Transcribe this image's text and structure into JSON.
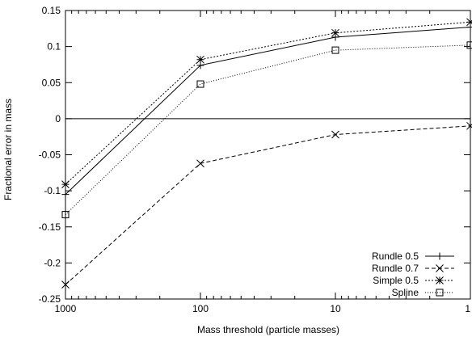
{
  "chart_data": {
    "type": "line",
    "xlabel": "Mass threshold (particle masses)",
    "ylabel": "Fractional error in mass",
    "x": [
      1000,
      100,
      10,
      1
    ],
    "x_scale": "log",
    "x_reversed": true,
    "xlim": [
      1000,
      1
    ],
    "ylim": [
      -0.25,
      0.15
    ],
    "x_ticks": [
      "1000",
      "100",
      "10",
      "1"
    ],
    "y_ticks": [
      "0.15",
      "0.1",
      "0.05",
      "0",
      "-0.05",
      "-0.1",
      "-0.15",
      "-0.2",
      "-0.25"
    ],
    "y_tick_values": [
      0.15,
      0.1,
      0.05,
      0,
      -0.05,
      -0.1,
      -0.15,
      -0.2,
      -0.25
    ],
    "zero_line": true,
    "grid": false,
    "legend_position": "bottom-right",
    "series": [
      {
        "name": "Rundle 0.5",
        "values": [
          -0.105,
          0.074,
          0.113,
          0.127
        ],
        "marker": "plus",
        "dash": "solid"
      },
      {
        "name": "Rundle 0.7",
        "values": [
          -0.23,
          -0.062,
          -0.022,
          -0.01
        ],
        "marker": "cross",
        "dash": "dashed"
      },
      {
        "name": "Simple 0.5",
        "values": [
          -0.091,
          0.082,
          0.119,
          0.134
        ],
        "marker": "star",
        "dash": "dotted"
      },
      {
        "name": "Spline",
        "values": [
          -0.133,
          0.048,
          0.095,
          0.102
        ],
        "marker": "square",
        "dash": "fine-dotted"
      }
    ]
  }
}
